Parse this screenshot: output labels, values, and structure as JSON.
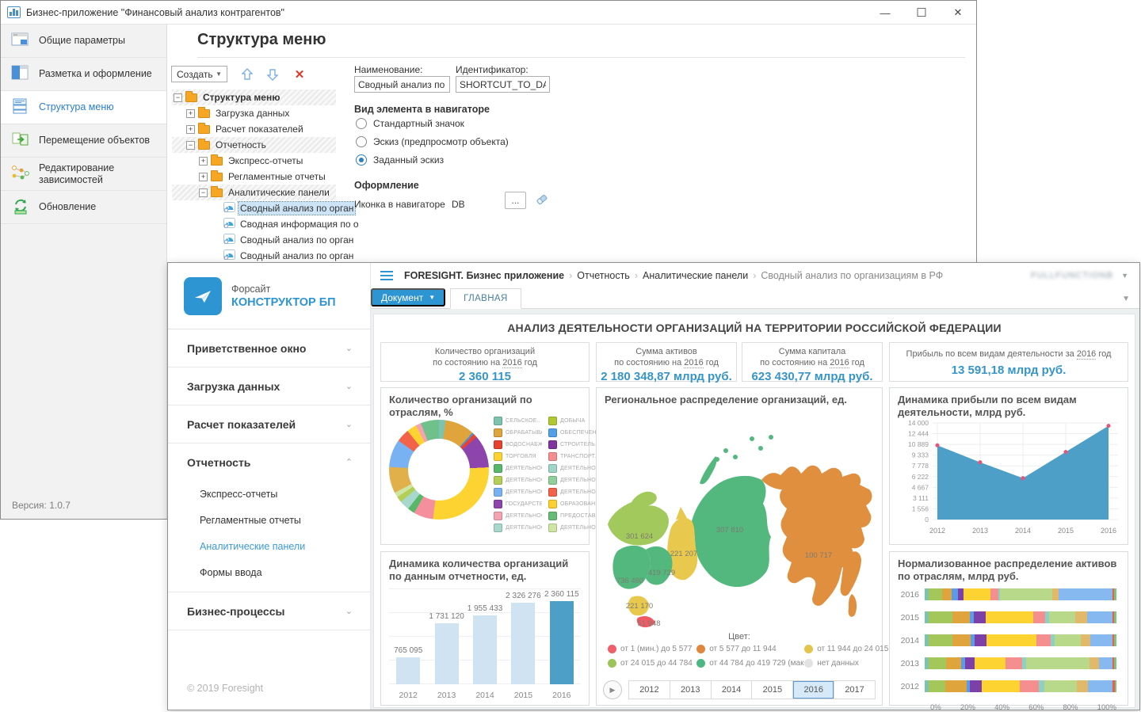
{
  "window1": {
    "title": "Бизнес-приложение \"Финансовый анализ контрагентов\"",
    "controls": {
      "minimize": "—",
      "maximize": "☐",
      "close": "✕"
    },
    "sidebar": {
      "items": [
        {
          "label": "Общие параметры",
          "icon": "form-icon",
          "active": false
        },
        {
          "label": "Разметка и оформление",
          "icon": "layout-icon",
          "active": false
        },
        {
          "label": "Структура меню",
          "icon": "menu-structure-icon",
          "active": true
        },
        {
          "label": "Перемещение объектов",
          "icon": "move-objects-icon",
          "active": false
        },
        {
          "label": "Редактирование зависимостей",
          "icon": "dependencies-icon",
          "active": false
        },
        {
          "label": "Обновление",
          "icon": "refresh-icon",
          "active": false
        }
      ],
      "version": "Версия: 1.0.7"
    },
    "page_title": "Структура меню",
    "toolbar": {
      "create_label": "Создать",
      "icons": [
        "move-up-icon",
        "move-down-icon",
        "delete-icon"
      ]
    },
    "tree": [
      {
        "label": "Структура меню",
        "level": 0,
        "expand": "minus",
        "bold": true,
        "hatched": true
      },
      {
        "label": "Загрузка данных",
        "level": 1,
        "expand": "plus"
      },
      {
        "label": "Расчет показателей",
        "level": 1,
        "expand": "plus"
      },
      {
        "label": "Отчетность",
        "level": 1,
        "expand": "minus",
        "hatched": true
      },
      {
        "label": "Экспресс-отчеты",
        "level": 2,
        "expand": "plus"
      },
      {
        "label": "Регламентные отчеты",
        "level": 2,
        "expand": "plus"
      },
      {
        "label": "Аналитические панели",
        "level": 2,
        "expand": "minus",
        "hatched": true
      },
      {
        "label": "Сводный анализ по орган",
        "level": 3,
        "leaf": true,
        "selected": true
      },
      {
        "label": "Сводная информация по о",
        "level": 3,
        "leaf": true
      },
      {
        "label": "Сводный анализ по орган",
        "level": 3,
        "leaf": true
      },
      {
        "label": "Сводный анализ по орган",
        "level": 3,
        "leaf": true
      }
    ],
    "form": {
      "name_label": "Наименование:",
      "name_value": "Сводный анализ по ор",
      "id_label": "Идентификатор:",
      "id_value": "SHORTCUT_TO_DASH",
      "view_section": "Вид элемента в навигаторе",
      "radios": [
        {
          "label": "Стандартный значок",
          "checked": false
        },
        {
          "label": "Эскиз (предпросмотр объекта)",
          "checked": false
        },
        {
          "label": "Заданный эскиз",
          "checked": true
        }
      ],
      "design_section": "Оформление",
      "icon_label": "Иконка в навигаторе",
      "icon_value": "DB",
      "browse_label": "...",
      "clear_icon": "eraser-icon"
    }
  },
  "window2": {
    "logo": {
      "brand": "Форсайт",
      "product": "КОНСТРУКТОР БП",
      "icon": "paper-plane-icon"
    },
    "breadcrumb": {
      "app": "FORESIGHT. Бизнес приложение",
      "items": [
        "Отчетность",
        "Аналитические панели",
        "Сводный анализ по организациям в РФ"
      ]
    },
    "user": "FULLFUNCTIONB",
    "tabs": {
      "document": "Документ",
      "main": "ГЛАВНАЯ"
    },
    "sidebar": {
      "sections": [
        {
          "label": "Приветственное окно",
          "chevron": "down",
          "children": []
        },
        {
          "label": "Загрузка данных",
          "chevron": "down",
          "children": []
        },
        {
          "label": "Расчет показателей",
          "chevron": "down",
          "children": []
        },
        {
          "label": "Отчетность",
          "chevron": "up",
          "children": [
            "Экспресс-отчеты",
            "Регламентные отчеты",
            "Аналитические панели",
            "Формы ввода"
          ],
          "active_child": "Аналитические панели"
        },
        {
          "label": "Бизнес-процессы",
          "chevron": "down",
          "children": []
        }
      ],
      "copyright": "© 2019 Foresight"
    },
    "dashboard": {
      "title": "АНАЛИЗ ДЕЯТЕЛЬНОСТИ ОРГАНИЗАЦИЙ НА ТЕРРИТОРИИ РОССИЙСКОЙ ФЕДЕРАЦИИ",
      "kpis": [
        {
          "lines": [
            "Количество организаций",
            "по состоянию на 2016 год"
          ],
          "value": "2 360 115"
        },
        {
          "lines": [
            "Сумма активов",
            "по состоянию на 2016 год"
          ],
          "value": "2 180 348,87 млрд руб."
        },
        {
          "lines": [
            "Сумма капитала",
            "по состоянию на 2016 год"
          ],
          "value": "623 430,77 млрд руб."
        },
        {
          "lines": [
            "Прибыль по всем видам деятельности за 2016 год"
          ],
          "value": "13 591,18 млрд руб."
        }
      ]
    }
  },
  "chart_data": [
    {
      "type": "pie",
      "donut": true,
      "title": "Количество организаций по отраслям, %",
      "legend_position": "right",
      "legend_columns": [
        [
          {
            "label": "СЕЛЬСКОЕ..",
            "color": "#7cc4ad"
          },
          {
            "label": "ОБРАБАТЫВАЮ..",
            "color": "#e0a43c"
          },
          {
            "label": "ВОДОСНАБЖЕН..",
            "color": "#e8422f"
          },
          {
            "label": "ТОРГОВЛЯ",
            "color": "#fdd331"
          },
          {
            "label": "ДЕЯТЕЛЬНОСТЬ",
            "color": "#57b86a"
          },
          {
            "label": "ДЕЯТЕЛЬНОСТЬ",
            "color": "#b3cf56"
          },
          {
            "label": "ДЕЯТЕЛЬНОСТЬ",
            "color": "#79b2f2"
          },
          {
            "label": "ГОСУДАРСТВЕН..",
            "color": "#8e44ad"
          },
          {
            "label": "ДЕЯТЕЛЬНОСТЬ В",
            "color": "#f5a3b3"
          },
          {
            "label": "ДЕЯТЕЛЬНОСТЬ",
            "color": "#a8d8cb"
          }
        ],
        [
          {
            "label": "ДОБЫЧА",
            "color": "#b0c832"
          },
          {
            "label": "ОБЕСПЕЧЕН..",
            "color": "#51a0e8"
          },
          {
            "label": "СТРОИТЕЛЬ..",
            "color": "#8135a0"
          },
          {
            "label": "ТРАНСПОРТ..",
            "color": "#f58f8f"
          },
          {
            "label": "ДЕЯТЕЛЬНО..",
            "color": "#9fd4c9"
          },
          {
            "label": "ДЕЯТЕЛЬНО..",
            "color": "#90d09a"
          },
          {
            "label": "ДЕЯТЕЛЬНО..",
            "color": "#f3634a"
          },
          {
            "label": "ОБРАЗОВАНИ..",
            "color": "#fdd02f"
          },
          {
            "label": "ПРЕДОСТАВ..",
            "color": "#66bb77"
          },
          {
            "label": "ДЕЯТЕЛЬНО..",
            "color": "#cfe5a4"
          }
        ]
      ],
      "segments": [
        {
          "color": "#7cc4ad",
          "value": 2
        },
        {
          "color": "#e0a43c",
          "value": 9
        },
        {
          "color": "#4a90d9",
          "value": 0.6
        },
        {
          "color": "#e8422f",
          "value": 1.2
        },
        {
          "color": "#8e44ad",
          "value": 10
        },
        {
          "color": "#fdd331",
          "value": 26
        },
        {
          "color": "#f58f9e",
          "value": 6
        },
        {
          "color": "#57b86a",
          "value": 2.2
        },
        {
          "color": "#a8d8cb",
          "value": 3
        },
        {
          "color": "#b3cf56",
          "value": 1.8
        },
        {
          "color": "#cfe5a4",
          "value": 1.5
        },
        {
          "color": "#e2b04a",
          "value": 8
        },
        {
          "color": "#79b2f2",
          "value": 8.5
        },
        {
          "color": "#f3634a",
          "value": 4
        },
        {
          "color": "#fdd331",
          "value": 3
        },
        {
          "color": "#f5a3b3",
          "value": 1.6
        },
        {
          "color": "#6fc08b",
          "value": 5.6
        }
      ]
    },
    {
      "type": "bar",
      "title": "Динамика количества организаций по данным отчетности, ед.",
      "categories": [
        "2012",
        "2013",
        "2014",
        "2015",
        "2016"
      ],
      "values": [
        765095,
        1731120,
        1955433,
        2326276,
        2360115
      ],
      "value_labels": [
        "765 095",
        "1 731 120",
        "1 955 433",
        "2 326 276",
        "2 360 115"
      ],
      "highlight_index": 4,
      "bar_color": "#cfe3f2",
      "highlight_color": "#4d9fc7",
      "ylim": [
        0,
        2500000
      ],
      "grid": true
    },
    {
      "type": "heatmap",
      "subtype": "choropleth-map",
      "title": "Региональное распределение организаций, ед.",
      "regions": [
        {
          "name": "Северо-Западный",
          "value_label": "301 624",
          "color": "#a2c95b"
        },
        {
          "name": "Центральный",
          "value_label": "736 460",
          "color": "#52b87e"
        },
        {
          "name": "Приволжский",
          "value_label": "419 729",
          "color": "#52b87e"
        },
        {
          "name": "Южный",
          "value_label": "221 170",
          "color": "#e8c94e"
        },
        {
          "name": "Северо-Кавказский",
          "value_label": "51 948",
          "color": "#ef5a65"
        },
        {
          "name": "Уральский",
          "value_label": "221 207",
          "color": "#e8c94e"
        },
        {
          "name": "Сибирский",
          "value_label": "307 810",
          "color": "#52b87e"
        },
        {
          "name": "Дальневосточный",
          "value_label": "100 717",
          "color": "#df8f3d"
        }
      ],
      "legend_title": "Цвет:",
      "legend": [
        {
          "label": "от 1 (мин.) до 5 577",
          "color": "#f05f6a"
        },
        {
          "label": "от 5 577 до 11 944",
          "color": "#e0873c"
        },
        {
          "label": "от 11 944 до 24 015",
          "color": "#e3c44c"
        },
        {
          "label": "от 24 015 до 44 784",
          "color": "#9cc45a"
        },
        {
          "label": "от 44 784 до 419 729 (макс.)",
          "color": "#4db884"
        },
        {
          "label": "нет данных",
          "color": "#e3e3e3"
        }
      ],
      "timeline": {
        "years": [
          "2012",
          "2013",
          "2014",
          "2015",
          "2016",
          "2017"
        ],
        "selected": "2016"
      }
    },
    {
      "type": "area",
      "title": "Динамика прибыли по всем видам деятельности, млрд руб.",
      "x": [
        "2012",
        "2013",
        "2014",
        "2015",
        "2016"
      ],
      "values": [
        10750,
        8300,
        6000,
        9800,
        13591
      ],
      "y_ticks": [
        "14 000",
        "12 444",
        "10 889",
        "9 333",
        "7 778",
        "6 222",
        "4 667",
        "3 111",
        "1 556",
        "0"
      ],
      "ylim": [
        0,
        14000
      ],
      "fill_color": "#4d9fc7",
      "marker_color": "#e8537a",
      "grid": true
    },
    {
      "type": "bar",
      "stacked": true,
      "horizontal": true,
      "normalized": true,
      "title": "Нормализованное распределение активов по отраслям, млрд руб.",
      "categories": [
        "2016",
        "2015",
        "2014",
        "2013",
        "2012"
      ],
      "colors": [
        "#7cc4ad",
        "#a3c75b",
        "#e0a43c",
        "#5b9ce8",
        "#7d3fa8",
        "#fdd331",
        "#f58f8f",
        "#8fd0c4",
        "#b9d98a",
        "#e2b96a",
        "#85b9f0",
        "#e8604a",
        "#7cc47c"
      ],
      "rows_pct": [
        [
          2,
          7,
          5,
          3,
          3,
          14,
          4,
          1,
          27,
          3,
          28,
          1,
          1
        ],
        [
          2,
          12,
          9,
          2,
          6,
          24,
          6,
          2,
          13,
          6,
          13,
          1,
          1
        ],
        [
          2,
          12,
          9,
          2,
          6,
          25,
          7,
          2,
          13,
          5,
          11,
          1,
          1
        ],
        [
          2,
          9,
          8,
          2,
          5,
          16,
          9,
          2,
          33,
          5,
          7,
          1,
          1
        ],
        [
          2,
          9,
          11,
          2,
          6,
          20,
          10,
          3,
          17,
          6,
          13,
          1,
          1
        ]
      ],
      "x_ticks": [
        "0%",
        "20%",
        "40%",
        "60%",
        "80%",
        "100%"
      ]
    }
  ]
}
